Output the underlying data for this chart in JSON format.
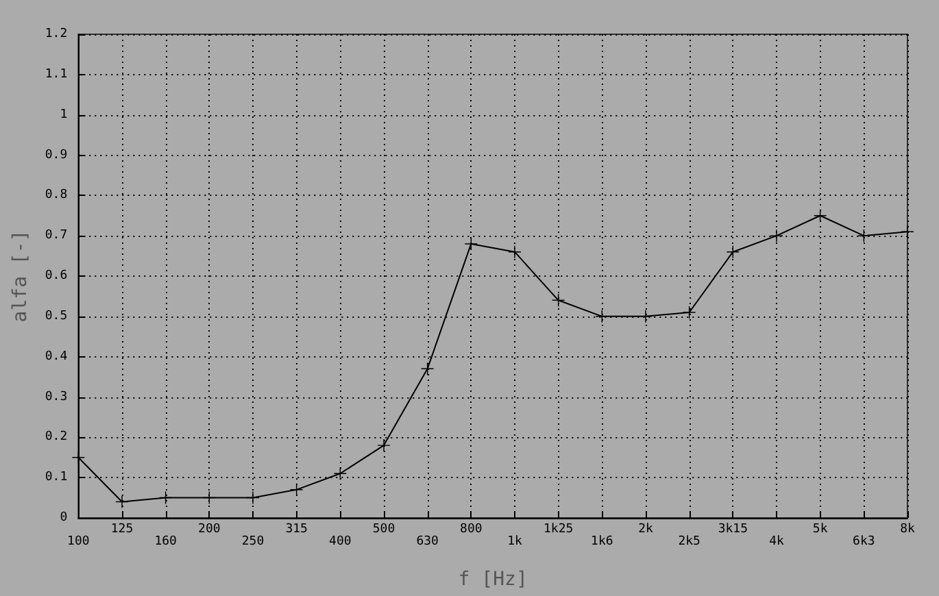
{
  "chart_data": {
    "type": "line",
    "xlabel": "f [Hz]",
    "ylabel": "alfa [-]",
    "categories": [
      "100",
      "125",
      "160",
      "200",
      "250",
      "315",
      "400",
      "500",
      "630",
      "800",
      "1k",
      "1k25",
      "1k6",
      "2k",
      "2k5",
      "3k15",
      "4k",
      "5k",
      "6k3",
      "8k"
    ],
    "series": [
      {
        "color": "#000000",
        "values": [
          0.15,
          0.04,
          0.05,
          0.05,
          0.05,
          0.07,
          0.11,
          0.18,
          0.37,
          0.68,
          0.66,
          0.54,
          0.5,
          0.5,
          0.51,
          0.66,
          0.7,
          0.75,
          0.7,
          0.71
        ]
      }
    ],
    "ylim": [
      0,
      1.2
    ],
    "yticks": [
      0,
      0.1,
      0.2,
      0.3,
      0.4,
      0.5,
      0.6,
      0.7,
      0.8,
      0.9,
      1,
      1.1,
      1.2
    ],
    "grid": true,
    "marker": "cross",
    "line_style": "solid"
  }
}
